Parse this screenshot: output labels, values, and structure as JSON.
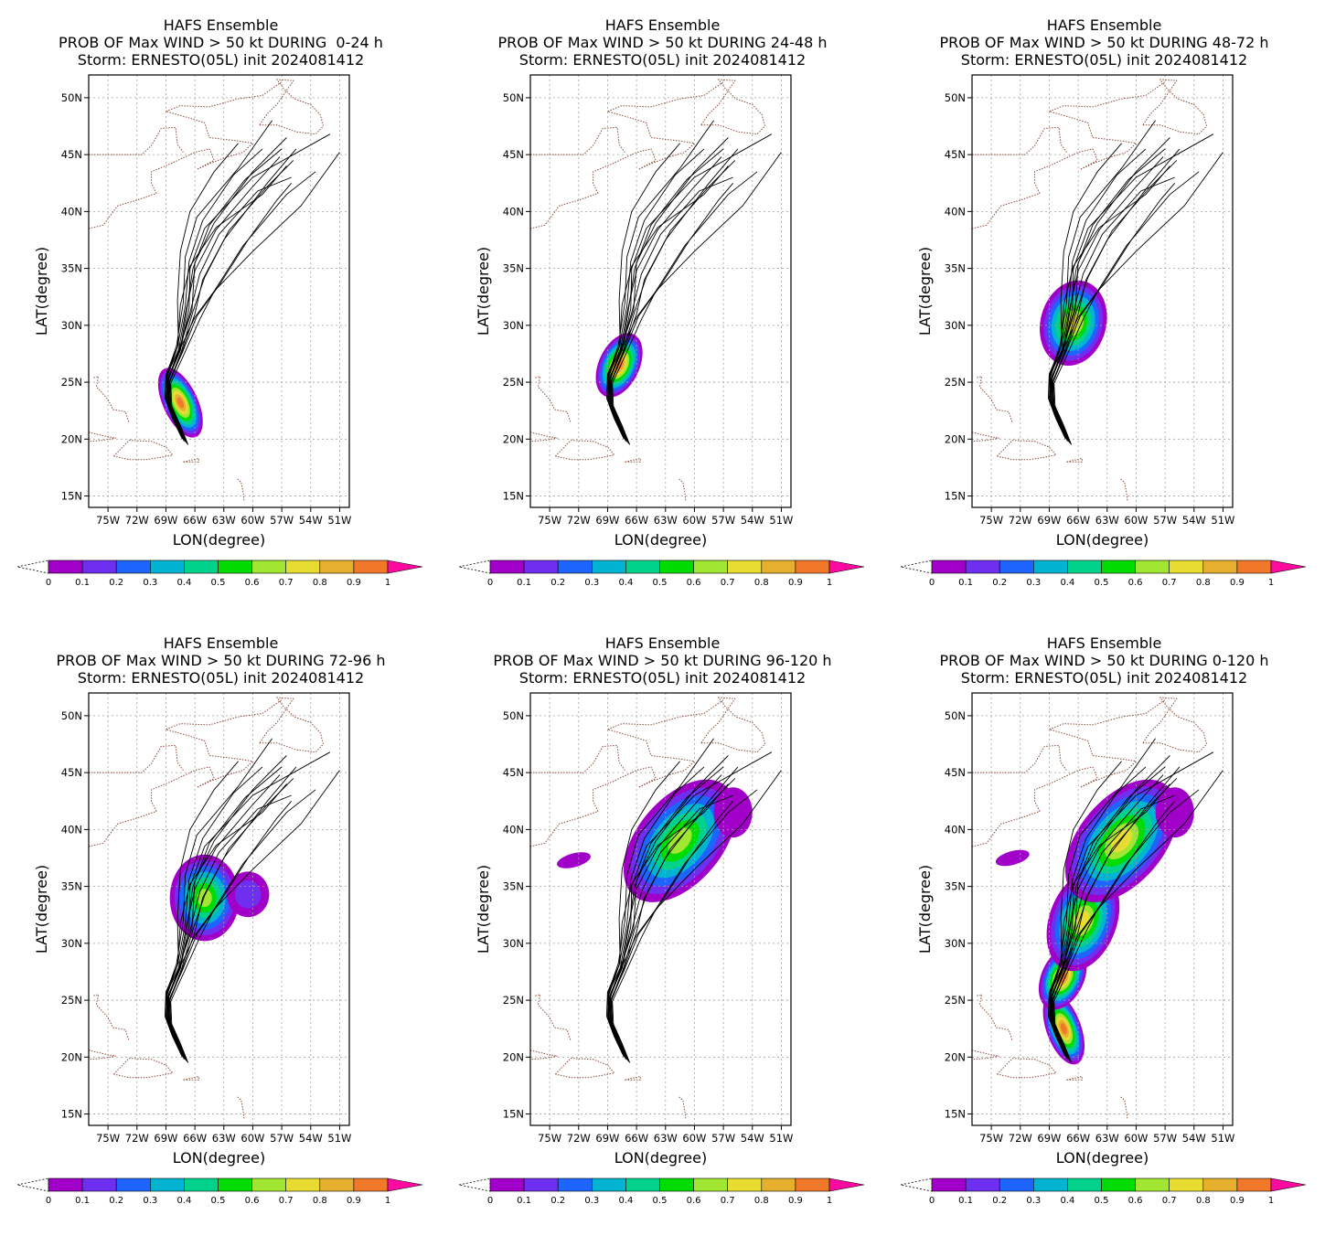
{
  "figure": {
    "title_line1": "HAFS Ensemble",
    "title_line3": "Storm: ERNESTO(05L) init 2024081412",
    "xlabel": "LON(degree)",
    "ylabel": "LAT(degree)",
    "lat_ticks": [
      "15N",
      "20N",
      "25N",
      "30N",
      "35N",
      "40N",
      "45N",
      "50N"
    ],
    "lon_ticks": [
      "75W",
      "72W",
      "69W",
      "66W",
      "63W",
      "60W",
      "57W",
      "54W",
      "51W"
    ],
    "lon_range": [
      -77,
      -50
    ],
    "lat_range": [
      14,
      52
    ]
  },
  "panels": [
    {
      "title_line2": "PROB OF Max WIND > 50 kt DURING  0-24 h",
      "prob_blobs": [
        {
          "lon": -67.5,
          "lat": 23.2,
          "rx": 1.8,
          "ry": 3.3,
          "rot": -25,
          "peak": 1.0
        }
      ]
    },
    {
      "title_line2": "PROB OF Max WIND > 50 kt DURING 24-48 h",
      "prob_blobs": [
        {
          "lon": -67.8,
          "lat": 26.5,
          "rx": 2.1,
          "ry": 3.0,
          "rot": 25,
          "peak": 0.95
        }
      ]
    },
    {
      "title_line2": "PROB OF Max WIND > 50 kt DURING 48-72 h",
      "prob_blobs": [
        {
          "lon": -66.5,
          "lat": 30.2,
          "rx": 3.4,
          "ry": 3.8,
          "rot": 15,
          "peak": 0.8
        }
      ]
    },
    {
      "title_line2": "PROB OF Max WIND > 50 kt DURING 72-96 h",
      "prob_blobs": [
        {
          "lon": -65.0,
          "lat": 34.0,
          "rx": 3.6,
          "ry": 3.8,
          "rot": 0,
          "peak": 0.7
        },
        {
          "lon": -60.5,
          "lat": 34.3,
          "rx": 2.2,
          "ry": 2.0,
          "rot": 0,
          "peak": 0.15
        }
      ]
    },
    {
      "title_line2": "PROB OF Max WIND > 50 kt DURING 96-120 h",
      "prob_blobs": [
        {
          "lon": -61.5,
          "lat": 39.0,
          "rx": 4.4,
          "ry": 6.3,
          "rot": 40,
          "peak": 0.7
        },
        {
          "lon": -56.0,
          "lat": 41.5,
          "rx": 2.0,
          "ry": 2.2,
          "rot": 0,
          "peak": 0.12
        },
        {
          "lon": -72.5,
          "lat": 37.3,
          "rx": 1.8,
          "ry": 0.6,
          "rot": -15,
          "peak": 0.08
        }
      ]
    },
    {
      "title_line2": "PROB OF Max WIND > 50 kt DURING 0-120 h",
      "prob_blobs": [
        {
          "lon": -67.5,
          "lat": 22.5,
          "rx": 1.8,
          "ry": 3.3,
          "rot": -20,
          "peak": 1.0
        },
        {
          "lon": -67.6,
          "lat": 27.0,
          "rx": 2.2,
          "ry": 3.0,
          "rot": 25,
          "peak": 0.95
        },
        {
          "lon": -65.5,
          "lat": 32.0,
          "rx": 3.5,
          "ry": 4.6,
          "rot": 20,
          "peak": 0.75
        },
        {
          "lon": -61.5,
          "lat": 39.0,
          "rx": 4.4,
          "ry": 6.3,
          "rot": 40,
          "peak": 0.75
        },
        {
          "lon": -56.0,
          "lat": 41.5,
          "rx": 2.0,
          "ry": 2.2,
          "rot": 0,
          "peak": 0.12
        },
        {
          "lon": -72.8,
          "lat": 37.5,
          "rx": 1.8,
          "ry": 0.6,
          "rot": -15,
          "peak": 0.08
        }
      ]
    }
  ],
  "tracks": [
    {
      "lon": [
        -67.1,
        -68.0,
        -68.8,
        -68.8,
        -67.5,
        -66.6,
        -66.5,
        -65.0,
        -60.0,
        -52.0
      ],
      "lat": [
        19.8,
        21.5,
        23.2,
        25.2,
        27.8,
        31.5,
        35.0,
        38.5,
        43.0,
        46.8
      ]
    },
    {
      "lon": [
        -66.8,
        -67.6,
        -68.5,
        -68.6,
        -67.4,
        -66.0,
        -65.2,
        -63.0,
        -58.5,
        -55.5
      ],
      "lat": [
        19.6,
        21.3,
        23.0,
        25.0,
        27.5,
        31.0,
        34.0,
        37.5,
        42.5,
        45.5
      ]
    },
    {
      "lon": [
        -67.3,
        -68.3,
        -69.0,
        -68.9,
        -67.6,
        -66.3,
        -66.0,
        -64.0,
        -60.0,
        -56.5
      ],
      "lat": [
        20.0,
        21.8,
        23.5,
        25.6,
        28.0,
        31.3,
        35.5,
        39.0,
        43.5,
        46.5
      ]
    },
    {
      "lon": [
        -66.9,
        -67.8,
        -68.6,
        -68.7,
        -67.6,
        -66.5,
        -65.5,
        -63.5,
        -59.5,
        -56.0
      ],
      "lat": [
        19.7,
        21.4,
        23.1,
        25.3,
        27.9,
        31.1,
        34.5,
        38.0,
        41.8,
        43.0
      ]
    },
    {
      "lon": [
        -67.0,
        -67.9,
        -68.7,
        -68.9,
        -67.8,
        -67.5,
        -66.5,
        -63.8,
        -59.0,
        -56.5
      ],
      "lat": [
        19.9,
        21.6,
        23.3,
        25.4,
        28.1,
        31.8,
        35.2,
        38.6,
        41.5,
        44.0
      ]
    },
    {
      "lon": [
        -67.2,
        -68.1,
        -68.9,
        -69.0,
        -67.9,
        -67.2,
        -67.0,
        -65.8,
        -61.5,
        -58.0
      ],
      "lat": [
        20.1,
        21.9,
        23.4,
        25.5,
        28.2,
        32.0,
        36.0,
        39.5,
        43.8,
        48.0
      ]
    },
    {
      "lon": [
        -66.7,
        -67.5,
        -68.4,
        -68.5,
        -67.2,
        -65.5,
        -64.0,
        -61.0,
        -56.5,
        -53.5
      ],
      "lat": [
        19.5,
        21.2,
        22.9,
        24.9,
        27.3,
        30.5,
        33.0,
        37.0,
        41.5,
        43.5
      ]
    },
    {
      "lon": [
        -67.4,
        -68.4,
        -69.1,
        -69.0,
        -67.7,
        -67.8,
        -67.5,
        -66.5,
        -64.0,
        -61.5
      ],
      "lat": [
        20.2,
        22.0,
        23.6,
        25.7,
        28.3,
        32.2,
        36.5,
        40.0,
        43.5,
        46.0
      ]
    },
    {
      "lon": [
        -67.0,
        -67.9,
        -68.7,
        -68.6,
        -67.3,
        -65.8,
        -63.5,
        -60.5,
        -57.5,
        -56.0
      ],
      "lat": [
        19.8,
        21.5,
        23.2,
        25.2,
        27.6,
        30.8,
        33.5,
        37.5,
        41.0,
        42.5
      ]
    },
    {
      "lon": [
        -66.8,
        -67.7,
        -68.5,
        -68.6,
        -67.4,
        -66.2,
        -65.0,
        -62.5,
        -58.5,
        -55.8
      ],
      "lat": [
        19.6,
        21.3,
        23.0,
        25.1,
        27.7,
        31.2,
        34.2,
        38.3,
        42.2,
        44.5
      ]
    },
    {
      "lon": [
        -67.2,
        -68.2,
        -68.9,
        -68.8,
        -67.5,
        -66.8,
        -66.2,
        -64.5,
        -60.8,
        -57.0
      ],
      "lat": [
        20.0,
        21.7,
        23.4,
        25.4,
        27.9,
        31.6,
        35.0,
        38.8,
        42.8,
        45.5
      ]
    },
    {
      "lon": [
        -67.1,
        -68.0,
        -68.8,
        -68.7,
        -67.6,
        -66.0,
        -64.0,
        -60.0,
        -55.0,
        -51.0
      ],
      "lat": [
        19.9,
        21.6,
        23.3,
        25.3,
        27.8,
        30.7,
        33.0,
        36.5,
        40.5,
        45.2
      ]
    },
    {
      "lon": [
        -66.9,
        -67.8,
        -68.6,
        -68.8,
        -67.7,
        -66.9,
        -66.0,
        -63.8,
        -60.2,
        -57.2
      ],
      "lat": [
        19.7,
        21.4,
        23.1,
        25.2,
        27.8,
        31.4,
        34.8,
        38.4,
        42.0,
        44.8
      ]
    },
    {
      "lon": [
        -67.3,
        -68.2,
        -68.9,
        -68.9,
        -67.8,
        -67.0,
        -66.6,
        -65.2,
        -62.0,
        -59.0
      ],
      "lat": [
        20.1,
        21.8,
        23.5,
        25.6,
        28.1,
        31.7,
        35.6,
        39.2,
        43.2,
        45.5
      ]
    }
  ],
  "coastlines": {
    "northeast": [
      [
        -77,
        38.5
      ],
      [
        -75.5,
        38.8
      ],
      [
        -74.0,
        40.5
      ],
      [
        -72.0,
        41.0
      ],
      [
        -70.0,
        41.6
      ],
      [
        -70.5,
        42.5
      ],
      [
        -70.5,
        43.5
      ],
      [
        -68.5,
        44.2
      ],
      [
        -67.0,
        44.8
      ],
      [
        -66.0,
        45.2
      ],
      [
        -64.5,
        45.5
      ],
      [
        -64.0,
        44.5
      ],
      [
        -65.8,
        43.7
      ],
      [
        -64.5,
        44.2
      ],
      [
        -63.0,
        44.7
      ],
      [
        -61.0,
        45.2
      ],
      [
        -60.0,
        46.0
      ],
      [
        -61.5,
        46.2
      ],
      [
        -64.5,
        46.5
      ],
      [
        -65.0,
        47.8
      ],
      [
        -66.5,
        48.2
      ],
      [
        -69.0,
        48.8
      ],
      [
        -67.5,
        49.3
      ],
      [
        -64.5,
        49.2
      ],
      [
        -61.5,
        49.9
      ],
      [
        -59.0,
        50.2
      ],
      [
        -57.0,
        51.4
      ]
    ],
    "newfoundland": [
      [
        -59.3,
        47.6
      ],
      [
        -57.5,
        47.6
      ],
      [
        -55.5,
        47.0
      ],
      [
        -53.5,
        46.8
      ],
      [
        -52.7,
        47.5
      ],
      [
        -53.0,
        48.5
      ],
      [
        -54.0,
        49.4
      ],
      [
        -55.7,
        49.9
      ],
      [
        -56.8,
        50.8
      ],
      [
        -57.5,
        51.6
      ],
      [
        -55.8,
        51.5
      ],
      [
        -57.5,
        49.4
      ],
      [
        -58.5,
        48.6
      ],
      [
        -59.3,
        47.6
      ]
    ],
    "us_canada_border": [
      [
        -77,
        45.0
      ],
      [
        -74.7,
        45.0
      ],
      [
        -71.5,
        45.0
      ],
      [
        -70.5,
        45.8
      ],
      [
        -69.5,
        47.3
      ],
      [
        -68.0,
        47.4
      ],
      [
        -67.8,
        45.9
      ],
      [
        -67.2,
        45.2
      ]
    ],
    "cuba": [
      [
        -77,
        20.6
      ],
      [
        -75.0,
        20.2
      ],
      [
        -74.2,
        20.1
      ],
      [
        -75.5,
        19.9
      ],
      [
        -77,
        19.8
      ]
    ],
    "hispaniola": [
      [
        -74.4,
        18.5
      ],
      [
        -72.8,
        19.9
      ],
      [
        -70.5,
        19.8
      ],
      [
        -69.0,
        19.3
      ],
      [
        -68.3,
        18.6
      ],
      [
        -69.5,
        18.4
      ],
      [
        -71.0,
        18.2
      ],
      [
        -72.8,
        18.2
      ],
      [
        -74.4,
        18.5
      ]
    ],
    "puerto_rico": [
      [
        -67.2,
        18.0
      ],
      [
        -65.6,
        18.3
      ],
      [
        -65.6,
        18.0
      ],
      [
        -67.2,
        18.0
      ]
    ],
    "bahamas": [
      [
        -76.5,
        25.4
      ],
      [
        -76.0,
        25.5
      ],
      [
        -76.2,
        24.6
      ],
      [
        -75.0,
        23.5
      ],
      [
        -74.5,
        22.6
      ],
      [
        -73.2,
        22.4
      ],
      [
        -72.8,
        21.4
      ]
    ],
    "lesser_antilles": [
      [
        -61.6,
        16.5
      ],
      [
        -61.2,
        16.2
      ],
      [
        -61.0,
        15.3
      ],
      [
        -60.9,
        14.6
      ]
    ]
  },
  "colorbar": {
    "labels": [
      "0",
      "0.1",
      "0.2",
      "0.3",
      "0.4",
      "0.5",
      "0.6",
      "0.7",
      "0.8",
      "0.9",
      "1"
    ],
    "colors": [
      "#a000c8",
      "#6e2ff0",
      "#1e64ff",
      "#00b4d2",
      "#00d28c",
      "#00dc00",
      "#a0e632",
      "#e6dc32",
      "#e6af2d",
      "#f07828",
      "#fa3c3c"
    ],
    "over_color": "#ff0aa0"
  }
}
